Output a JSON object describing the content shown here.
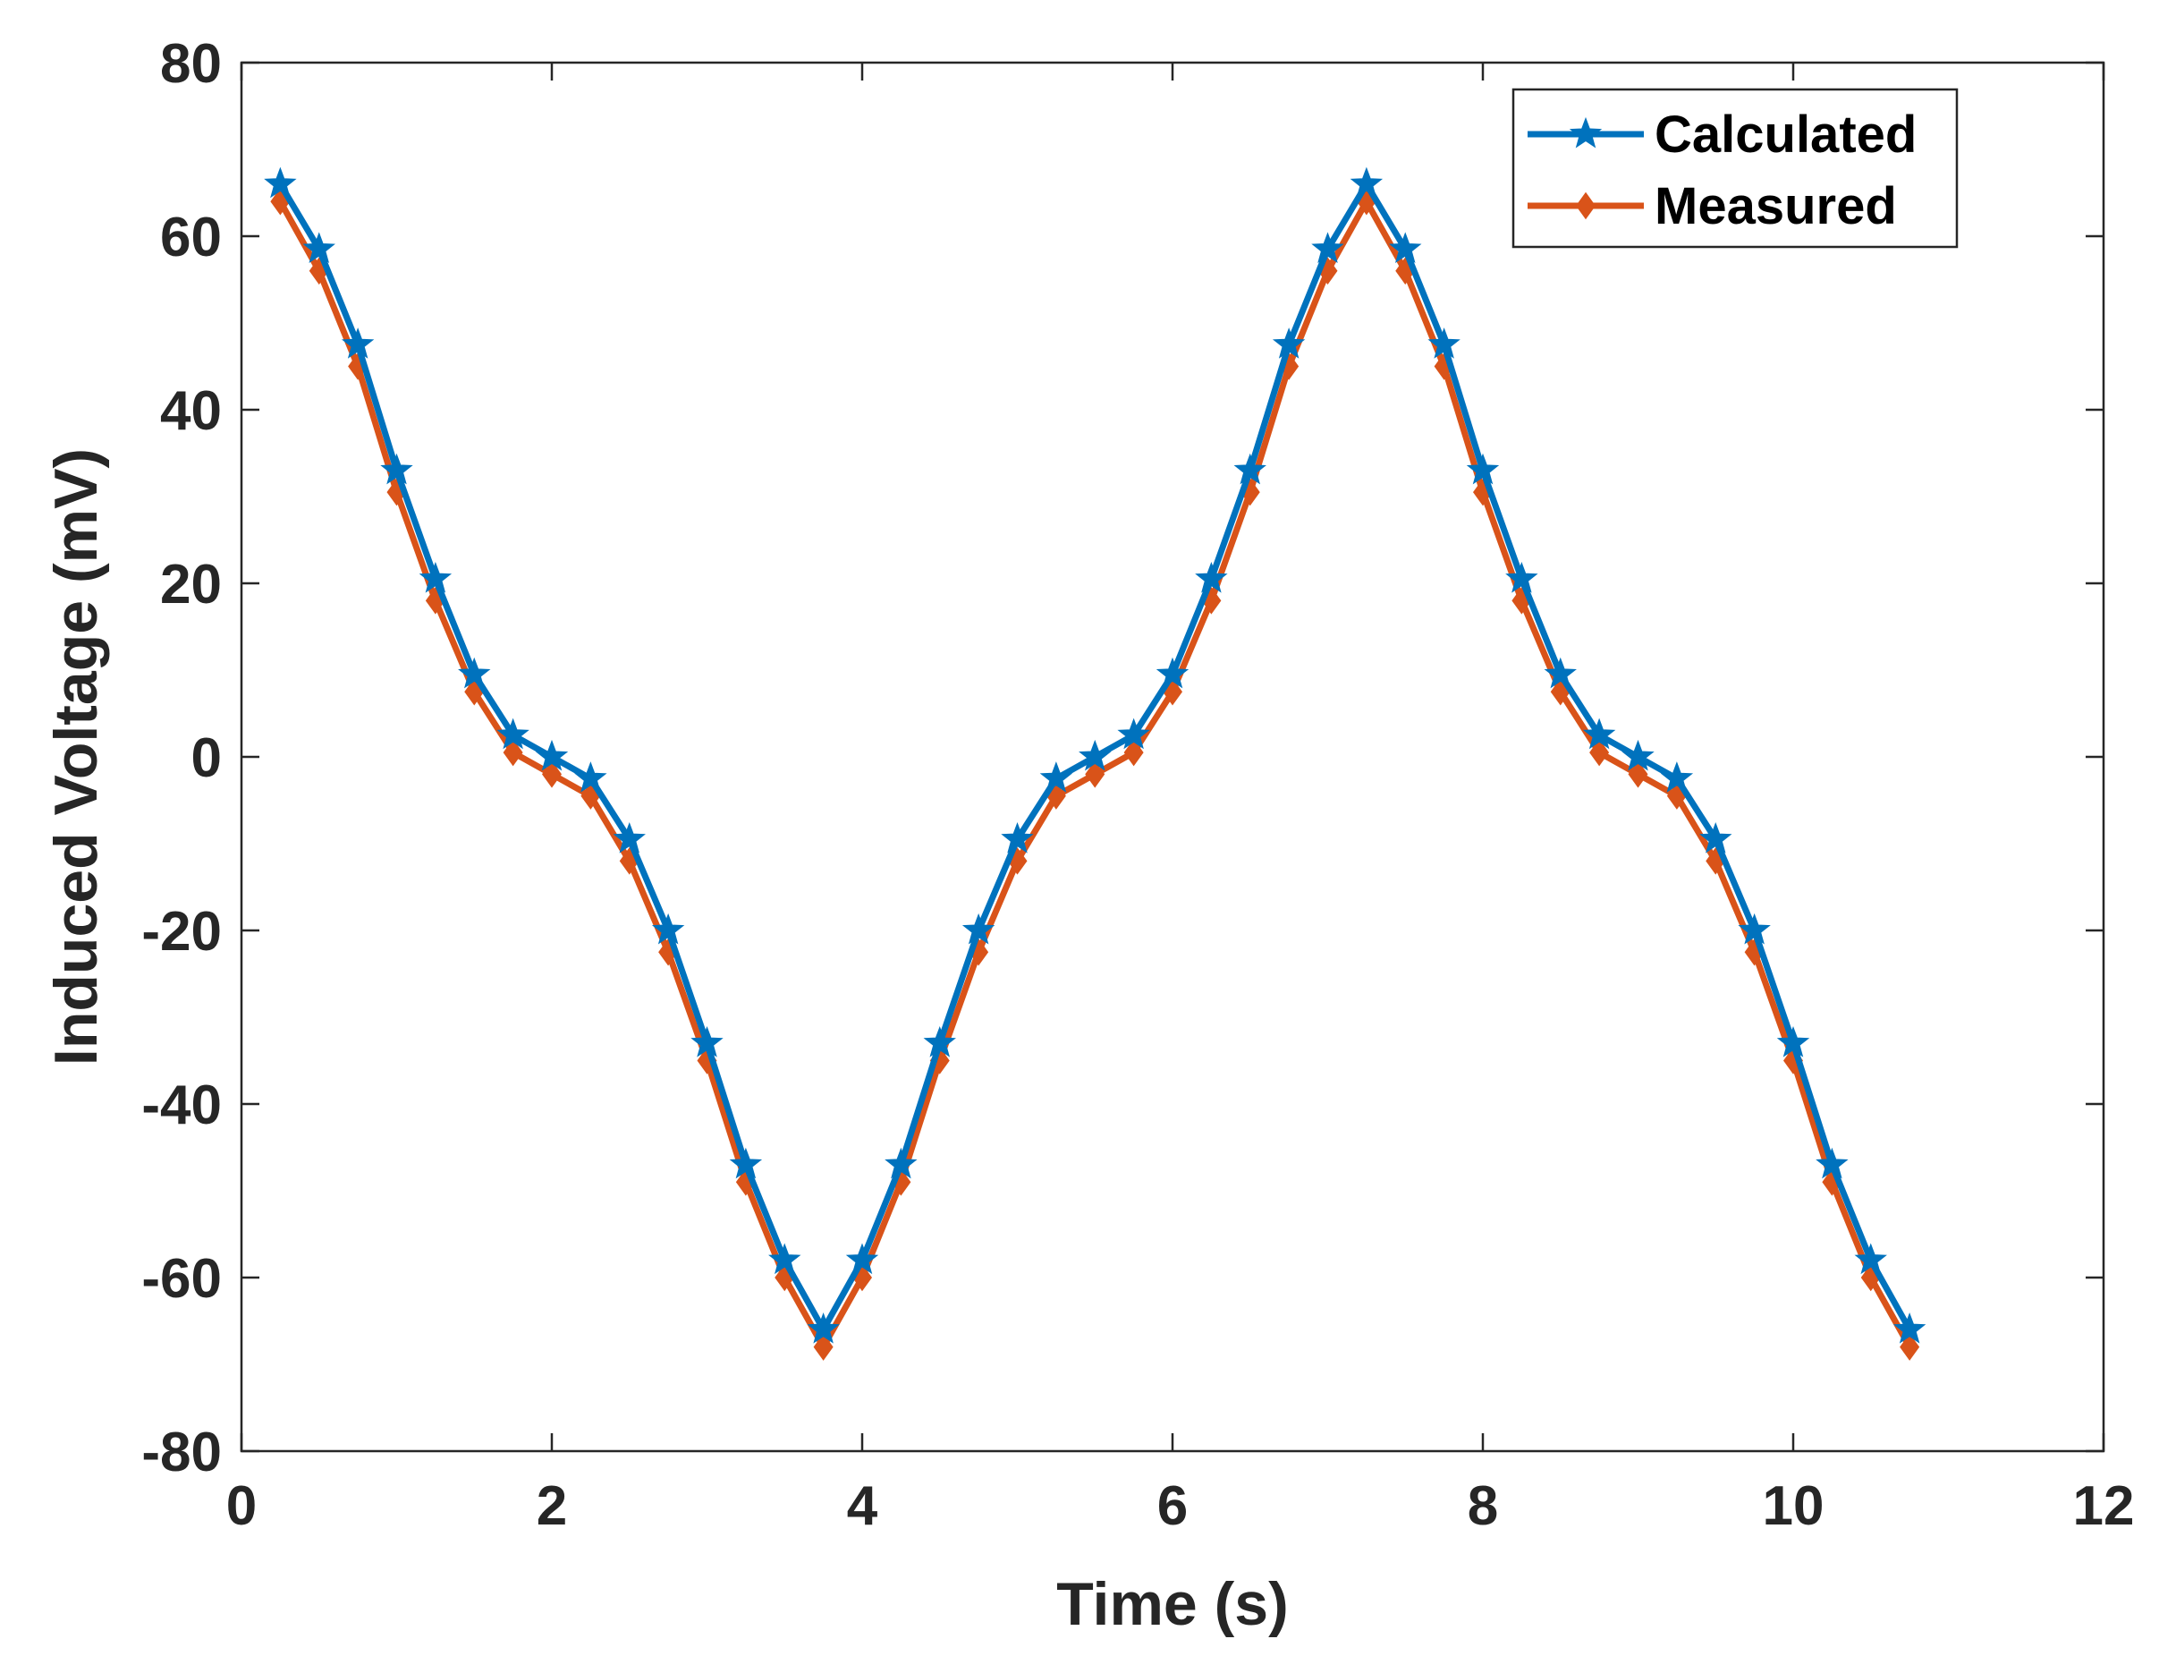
{
  "chart_data": {
    "type": "line",
    "title": "",
    "xlabel": "Time (s)",
    "ylabel": "Induced Voltage (mV)",
    "xlim": [
      0,
      12
    ],
    "ylim": [
      -80,
      80
    ],
    "xticks": [
      0,
      2,
      4,
      6,
      8,
      10,
      12
    ],
    "yticks": [
      -80,
      -60,
      -40,
      -20,
      0,
      20,
      40,
      60,
      80
    ],
    "grid": false,
    "legend_position": "top-right",
    "x": [
      0.25,
      0.5,
      0.75,
      1.0,
      1.25,
      1.5,
      1.75,
      2.0,
      2.25,
      2.5,
      2.75,
      3.0,
      3.25,
      3.5,
      3.75,
      4.0,
      4.25,
      4.5,
      4.75,
      5.0,
      5.25,
      5.5,
      5.75,
      6.0,
      6.25,
      6.5,
      6.75,
      7.0,
      7.25,
      7.5,
      7.75,
      8.0,
      8.25,
      8.5,
      8.75,
      9.0,
      9.25,
      9.5,
      9.75,
      10.0,
      10.25,
      10.5,
      10.75
    ],
    "series": [
      {
        "name": "Calculated",
        "color": "#0072BD",
        "marker": "star",
        "values": [
          66,
          58.5,
          47.5,
          33,
          20.5,
          9.5,
          2.5,
          0,
          -2.5,
          -9.5,
          -20,
          -33,
          -47,
          -58,
          -66,
          -58,
          -47,
          -33,
          -20,
          -9.5,
          -2.5,
          0,
          2.5,
          9.5,
          20.5,
          33,
          47.5,
          58.5,
          66,
          58.5,
          47.5,
          33,
          20.5,
          9.5,
          2.5,
          0,
          -2.5,
          -9.5,
          -20,
          -33,
          -47,
          -58,
          -66
        ]
      },
      {
        "name": "Measured",
        "color": "#D95319",
        "marker": "diamond",
        "values": [
          64,
          56,
          45,
          30.5,
          18,
          7.5,
          0.5,
          -2,
          -4.5,
          -12,
          -22.5,
          -35,
          -49,
          -60,
          -68,
          -60,
          -49,
          -35,
          -22.5,
          -12,
          -4.5,
          -2,
          0.5,
          7.5,
          18,
          30.5,
          45,
          56,
          64,
          56,
          45,
          30.5,
          18,
          7.5,
          0.5,
          -2,
          -4.5,
          -12,
          -22.5,
          -35,
          -49,
          -60,
          -68
        ]
      }
    ]
  }
}
